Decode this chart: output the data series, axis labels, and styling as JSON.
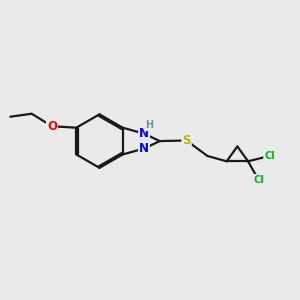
{
  "bg_color": "#eaeaea",
  "bond_color": "#1a1a1a",
  "bond_width": 1.6,
  "dbo": 0.055,
  "atom_colors": {
    "N": "#0000ff",
    "O": "#ff0000",
    "S": "#bbbb00",
    "Cl": "#00bb00",
    "H": "#6699aa",
    "C": "#1a1a1a"
  },
  "font_size_atom": 8.5,
  "font_size_small": 7.0
}
